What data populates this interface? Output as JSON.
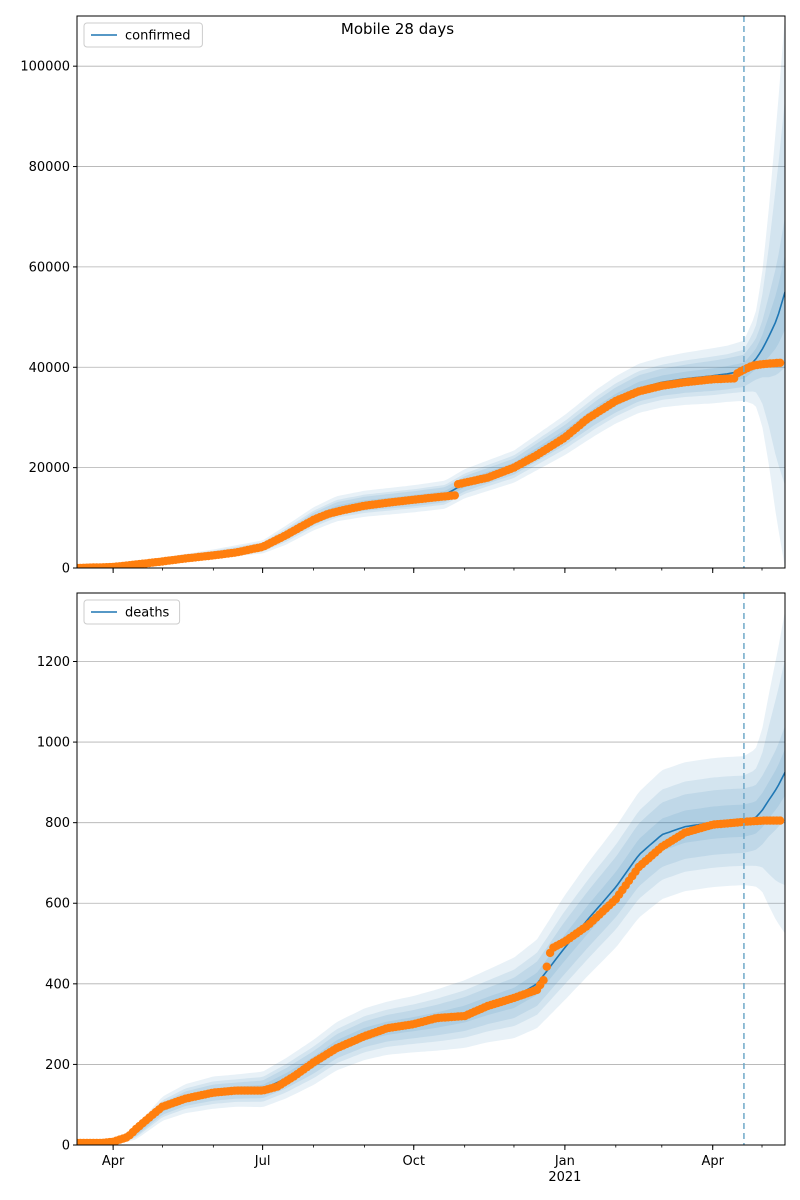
{
  "figure": {
    "title": "Mobile 28 days"
  },
  "forecast_start": "2021-04-20",
  "observed_color": "#ff7f0e",
  "model_color": "#1f77b4",
  "grid": true,
  "x_ticks": [
    {
      "date": "2020-04-01",
      "label": "Apr"
    },
    {
      "date": "2020-07-01",
      "label": "Jul"
    },
    {
      "date": "2020-10-01",
      "label": "Oct"
    },
    {
      "date": "2021-01-01",
      "label": "Jan",
      "sublabel": "2021"
    },
    {
      "date": "2021-04-01",
      "label": "Apr"
    }
  ],
  "chart_data": [
    {
      "type": "line",
      "legend": {
        "label": "confirmed",
        "placement": "top-left"
      },
      "xlim": [
        "2020-03-10",
        "2021-05-15"
      ],
      "ylim": [
        0,
        110000
      ],
      "yticks": [
        0,
        20000,
        40000,
        60000,
        80000,
        100000
      ],
      "model": {
        "x": [
          "2020-03-10",
          "2020-04-01",
          "2020-05-01",
          "2020-06-01",
          "2020-07-01",
          "2020-07-15",
          "2020-08-01",
          "2020-08-15",
          "2020-09-01",
          "2020-10-01",
          "2020-10-20",
          "2020-11-01",
          "2020-12-01",
          "2021-01-01",
          "2021-01-20",
          "2021-02-01",
          "2021-02-15",
          "2021-03-01",
          "2021-03-15",
          "2021-04-01",
          "2021-04-10",
          "2021-04-20",
          "2021-04-27",
          "2021-05-01",
          "2021-05-05",
          "2021-05-10",
          "2021-05-15"
        ],
        "y": [
          0,
          300,
          1500,
          2800,
          4200,
          6500,
          9800,
          11800,
          12800,
          13800,
          14600,
          16800,
          20200,
          26500,
          31000,
          33500,
          35800,
          37000,
          37700,
          38300,
          38700,
          39300,
          41500,
          43500,
          46000,
          49500,
          55000
        ],
        "band_inner_half_width": [
          0,
          60,
          250,
          400,
          600,
          900,
          1200,
          1300,
          1400,
          1500,
          1500,
          1500,
          1600,
          2000,
          2300,
          2500,
          2600,
          2700,
          2800,
          3000,
          3100,
          3200,
          4000,
          5500,
          8000,
          11000,
          15000
        ],
        "band_outer_half_width": [
          0,
          150,
          600,
          900,
          1300,
          1900,
          2300,
          2500,
          2600,
          2700,
          2800,
          2900,
          3200,
          4000,
          4500,
          4700,
          4900,
          5000,
          5200,
          5500,
          5600,
          6000,
          9000,
          15000,
          25000,
          40000,
          55000
        ]
      },
      "observed": {
        "x": [
          "2020-03-10",
          "2020-04-01",
          "2020-04-15",
          "2020-05-01",
          "2020-05-15",
          "2020-06-01",
          "2020-06-15",
          "2020-07-01",
          "2020-07-15",
          "2020-08-01",
          "2020-08-10",
          "2020-08-20",
          "2020-09-01",
          "2020-09-15",
          "2020-10-01",
          "2020-10-15",
          "2020-10-27",
          "2020-10-28",
          "2020-11-15",
          "2020-12-01",
          "2020-12-15",
          "2021-01-01",
          "2021-01-15",
          "2021-02-01",
          "2021-02-15",
          "2021-03-01",
          "2021-03-15",
          "2021-04-01",
          "2021-04-15",
          "2021-04-16",
          "2021-04-20",
          "2021-04-25",
          "2021-05-01",
          "2021-05-08",
          "2021-05-12"
        ],
        "y": [
          0,
          200,
          700,
          1300,
          1900,
          2500,
          3100,
          4200,
          6500,
          9600,
          10800,
          11600,
          12400,
          13000,
          13600,
          14100,
          14500,
          16700,
          18000,
          20000,
          22500,
          26000,
          29800,
          33300,
          35200,
          36300,
          37000,
          37600,
          37800,
          38800,
          39500,
          40300,
          40600,
          40800,
          40900
        ]
      }
    },
    {
      "type": "line",
      "legend": {
        "label": "deaths",
        "placement": "top-left"
      },
      "xlim": [
        "2020-03-10",
        "2021-05-15"
      ],
      "ylim": [
        0,
        1370
      ],
      "yticks": [
        0,
        200,
        400,
        600,
        800,
        1000,
        1200
      ],
      "model": {
        "x": [
          "2020-03-10",
          "2020-03-25",
          "2020-04-01",
          "2020-04-15",
          "2020-05-01",
          "2020-05-15",
          "2020-06-01",
          "2020-06-15",
          "2020-07-01",
          "2020-07-15",
          "2020-08-01",
          "2020-08-15",
          "2020-09-01",
          "2020-09-15",
          "2020-10-01",
          "2020-10-15",
          "2020-11-01",
          "2020-11-15",
          "2020-12-01",
          "2020-12-15",
          "2021-01-01",
          "2021-01-15",
          "2021-02-01",
          "2021-02-15",
          "2021-03-01",
          "2021-03-15",
          "2021-04-01",
          "2021-04-10",
          "2021-04-20",
          "2021-04-27",
          "2021-05-01",
          "2021-05-05",
          "2021-05-10",
          "2021-05-15"
        ],
        "y": [
          0,
          0,
          5,
          30,
          90,
          115,
          130,
          135,
          138,
          165,
          205,
          245,
          275,
          290,
          300,
          310,
          325,
          345,
          365,
          400,
          490,
          560,
          640,
          720,
          770,
          790,
          800,
          803,
          805,
          812,
          830,
          855,
          885,
          925
        ],
        "band_inner_half_width": [
          0,
          0,
          3,
          8,
          15,
          18,
          20,
          20,
          22,
          25,
          28,
          30,
          32,
          33,
          35,
          38,
          42,
          45,
          50,
          55,
          65,
          70,
          75,
          78,
          80,
          80,
          80,
          80,
          80,
          80,
          85,
          90,
          100,
          115
        ],
        "band_outer_half_width": [
          0,
          0,
          6,
          16,
          30,
          36,
          40,
          40,
          44,
          50,
          56,
          60,
          64,
          66,
          70,
          76,
          84,
          90,
          100,
          110,
          130,
          140,
          150,
          156,
          160,
          160,
          160,
          160,
          160,
          170,
          200,
          260,
          330,
          400
        ]
      },
      "observed": {
        "x": [
          "2020-03-10",
          "2020-03-25",
          "2020-04-01",
          "2020-04-10",
          "2020-04-15",
          "2020-04-25",
          "2020-05-01",
          "2020-05-15",
          "2020-06-01",
          "2020-06-15",
          "2020-07-01",
          "2020-07-10",
          "2020-07-20",
          "2020-08-01",
          "2020-08-15",
          "2020-09-01",
          "2020-09-15",
          "2020-10-01",
          "2020-10-15",
          "2020-11-01",
          "2020-11-15",
          "2020-12-01",
          "2020-12-15",
          "2020-12-20",
          "2020-12-22",
          "2020-12-25",
          "2021-01-01",
          "2021-01-15",
          "2021-02-01",
          "2021-02-15",
          "2021-03-01",
          "2021-03-15",
          "2021-04-01",
          "2021-04-15",
          "2021-04-20",
          "2021-05-01",
          "2021-05-12"
        ],
        "y": [
          5,
          5,
          8,
          20,
          40,
          75,
          95,
          115,
          130,
          135,
          135,
          145,
          170,
          205,
          240,
          270,
          290,
          300,
          315,
          320,
          345,
          365,
          385,
          415,
          470,
          490,
          505,
          545,
          610,
          690,
          740,
          775,
          795,
          800,
          802,
          805,
          805
        ]
      }
    }
  ]
}
